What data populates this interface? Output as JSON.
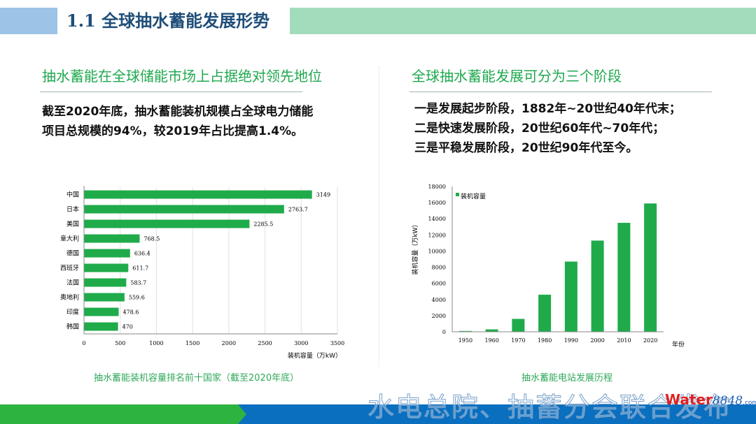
{
  "header": {
    "title": "1.1 全球抽水蓄能发展形势"
  },
  "left": {
    "subtitle": "抽水蓄能在全球储能市场上占据绝对领先地位",
    "lines": [
      "截至2020年底，抽水蓄能装机规模占全球电力储能",
      "项目总规模的94%，较2019年占比提高1.4%。"
    ],
    "caption": "抽水蓄能装机容量排名前十国家（截至2020年底）"
  },
  "right": {
    "subtitle": "全球抽水蓄能发展可分为三个阶段",
    "lines": [
      "一是发展起步阶段，1882年~20世纪40年代末；",
      "二是快速发展阶段，20世纪60年代~70年代；",
      "三是平稳发展阶段，20世纪90年代至今。"
    ],
    "caption": "抽水蓄能电站发展历程"
  },
  "footer": {
    "watermark": "水电总院、抽蓄分会联合发布",
    "logo_word": "Water",
    "logo_num": "8848",
    "logo_suffix": ".com"
  },
  "colors": {
    "bar": "#1fab4a",
    "title": "#1f4e79",
    "accent_green": "#1ea84e",
    "band_blue": "#0a6fbf",
    "band_green": "#2db33f"
  },
  "chart_data": [
    {
      "type": "bar",
      "orientation": "horizontal",
      "categories": [
        "中国",
        "日本",
        "美国",
        "意大利",
        "德国",
        "西班牙",
        "法国",
        "奥地利",
        "印度",
        "韩国"
      ],
      "values": [
        3149,
        2763.7,
        2285.5,
        768.5,
        636.4,
        611.7,
        583.7,
        559.6,
        478.6,
        470
      ],
      "value_labels": [
        "3149",
        "2763.7",
        "2285.5",
        "768.5",
        "636.4",
        "611.7",
        "583.7",
        "559.6",
        "478.6",
        "470"
      ],
      "xlabel": "装机容量（万kW）",
      "xlim": [
        0,
        3500
      ],
      "xticks": [
        "0",
        "500",
        "1000",
        "1500",
        "2000",
        "2500",
        "3000",
        "3500"
      ],
      "grid": true
    },
    {
      "type": "bar",
      "categories": [
        "1950",
        "1960",
        "1970",
        "1980",
        "1990",
        "2000",
        "2010",
        "2020"
      ],
      "series": [
        {
          "name": "装机容量",
          "values": [
            100,
            300,
            1600,
            4600,
            8700,
            11300,
            13500,
            15900
          ]
        }
      ],
      "xlabel": "年份",
      "ylabel": "装机容量（万kW）",
      "ylim": [
        0,
        18000
      ],
      "yticks": [
        "0",
        "2000",
        "4000",
        "6000",
        "8000",
        "10000",
        "12000",
        "14000",
        "16000",
        "18000"
      ],
      "legend": "top-left",
      "grid": false
    }
  ]
}
